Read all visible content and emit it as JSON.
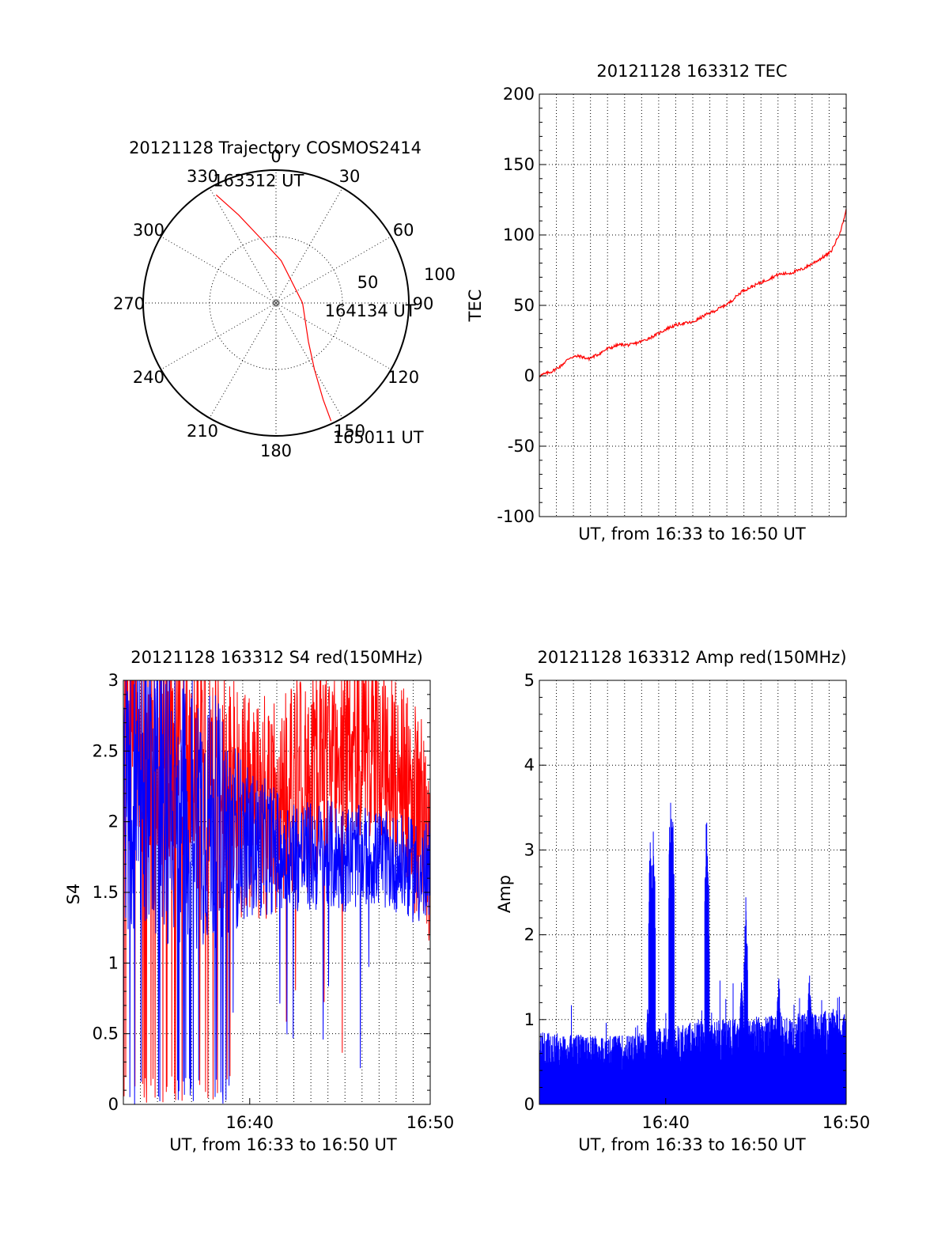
{
  "colors": {
    "red": "#ff0000",
    "blue": "#0000ff",
    "axis": "#000000",
    "background": "#ffffff"
  },
  "chart_data": [
    {
      "id": "trajectory",
      "type": "polar",
      "title": "20121128 Trajectory COSMOS2414",
      "angle_labels": [
        "0",
        "30",
        "60",
        "90",
        "120",
        "150",
        "180",
        "210",
        "240",
        "270",
        "300",
        "330"
      ],
      "angle_values": [
        0,
        30,
        60,
        90,
        120,
        150,
        180,
        210,
        240,
        270,
        300,
        330
      ],
      "radial_labels": [
        "50",
        "100"
      ],
      "radial_values": [
        50,
        100
      ],
      "rmax": 100,
      "grid": true,
      "series": [
        {
          "color": "#ff0000",
          "points": [
            {
              "az": 331,
              "r": 93
            },
            {
              "az": 337,
              "r": 72
            },
            {
              "az": 346,
              "r": 51
            },
            {
              "az": 7,
              "r": 32
            },
            {
              "az": 90,
              "r": 20
            },
            {
              "az": 140,
              "r": 38
            },
            {
              "az": 150,
              "r": 58
            },
            {
              "az": 154,
              "r": 81
            },
            {
              "az": 155,
              "r": 98
            }
          ]
        }
      ],
      "annotations": [
        {
          "text": "163312 UT",
          "az": 331,
          "r": 93
        },
        {
          "text": "164134 UT",
          "az": 90,
          "r": 20
        },
        {
          "text": "165011 UT",
          "az": 155,
          "r": 98
        }
      ]
    },
    {
      "id": "tec",
      "type": "line",
      "title": "20121128 163312 TEC",
      "xlabel": "UT, from 16:33 to 16:50 UT",
      "ylabel": "TEC",
      "ylim": [
        -100,
        200
      ],
      "yticks": [
        -100,
        -50,
        0,
        50,
        100,
        150,
        200
      ],
      "ytick_labels": [
        "-100",
        "-50",
        "0",
        "50",
        "100",
        "150",
        "200"
      ],
      "xlim": [
        0,
        1
      ],
      "x_gridlines": 18,
      "grid": true,
      "series": [
        {
          "color": "#ff0000",
          "x": [
            0,
            0.04,
            0.07,
            0.1,
            0.13,
            0.16,
            0.19,
            0.22,
            0.26,
            0.3,
            0.34,
            0.38,
            0.42,
            0.46,
            0.5,
            0.54,
            0.58,
            0.62,
            0.66,
            0.7,
            0.74,
            0.78,
            0.82,
            0.86,
            0.9,
            0.93,
            0.95,
            0.97,
            0.985,
            1
          ],
          "y": [
            0,
            3,
            7,
            13,
            14,
            12,
            15,
            19,
            22,
            22,
            25,
            29,
            34,
            37,
            38,
            43,
            47,
            52,
            60,
            64,
            68,
            72,
            73,
            76,
            81,
            85,
            88,
            97,
            105,
            118
          ]
        }
      ]
    },
    {
      "id": "s4",
      "type": "line",
      "title": "20121128 163312 S4 red(150MHz)",
      "xlabel": "UT, from 16:33 to 16:50 UT",
      "ylabel": "S4",
      "ylim": [
        0,
        3
      ],
      "yticks": [
        0,
        0.5,
        1,
        1.5,
        2,
        2.5,
        3
      ],
      "ytick_labels": [
        "0",
        "0.5",
        "1",
        "1.5",
        "2",
        "2.5",
        "3"
      ],
      "xlim": [
        0,
        1
      ],
      "xticks": [
        0.4118,
        1
      ],
      "xtick_labels": [
        "16:40",
        "16:50"
      ],
      "x_gridlines": 18,
      "grid": true,
      "series": [
        {
          "color": "#ff0000",
          "x": [
            0,
            0.1,
            0.2,
            0.3,
            0.4,
            0.5,
            0.6,
            0.7,
            0.8,
            0.9,
            1
          ],
          "center": [
            2.6,
            2.6,
            2.5,
            2.3,
            2.1,
            2.1,
            2.3,
            2.5,
            2.6,
            2.3,
            1.9
          ],
          "spread": [
            0.9,
            0.9,
            0.9,
            0.9,
            0.8,
            0.8,
            0.8,
            0.7,
            0.7,
            0.7,
            0.8
          ]
        },
        {
          "color": "#0000ff",
          "x": [
            0,
            0.1,
            0.2,
            0.3,
            0.4,
            0.5,
            0.6,
            0.7,
            0.8,
            0.9,
            1
          ],
          "center": [
            2.3,
            2.2,
            2.1,
            2.0,
            1.85,
            1.8,
            1.75,
            1.75,
            1.75,
            1.7,
            1.6
          ],
          "spread": [
            1.1,
            1.1,
            1.0,
            0.9,
            0.55,
            0.45,
            0.4,
            0.4,
            0.35,
            0.35,
            0.4
          ]
        }
      ]
    },
    {
      "id": "amp",
      "type": "bar",
      "title": "20121128 163312 Amp red(150MHz)",
      "xlabel": "UT, from 16:33 to 16:50 UT",
      "ylabel": "Amp",
      "ylim": [
        0,
        5
      ],
      "yticks": [
        0,
        1,
        2,
        3,
        4,
        5
      ],
      "ytick_labels": [
        "0",
        "1",
        "2",
        "3",
        "4",
        "5"
      ],
      "xlim": [
        0,
        1
      ],
      "xticks": [
        0.4118,
        1
      ],
      "xtick_labels": [
        "16:40",
        "16:50"
      ],
      "x_gridlines": 18,
      "grid": true,
      "series": [
        {
          "color": "#0000ff",
          "baseline": [
            0.75,
            0.72,
            0.7,
            0.72,
            0.78,
            0.85,
            0.88,
            0.9,
            0.92,
            0.95,
            1.0
          ],
          "baseline_x": [
            0,
            0.1,
            0.2,
            0.3,
            0.4,
            0.5,
            0.6,
            0.7,
            0.8,
            0.9,
            1
          ],
          "peaks": [
            {
              "x": 0.362,
              "y": 3.6
            },
            {
              "x": 0.372,
              "y": 3.45
            },
            {
              "x": 0.428,
              "y": 4.05
            },
            {
              "x": 0.434,
              "y": 3.8
            },
            {
              "x": 0.545,
              "y": 3.7
            },
            {
              "x": 0.548,
              "y": 3.3
            },
            {
              "x": 0.673,
              "y": 2.6
            },
            {
              "x": 0.66,
              "y": 1.55
            },
            {
              "x": 0.88,
              "y": 1.6
            },
            {
              "x": 0.78,
              "y": 1.6
            }
          ]
        }
      ]
    }
  ]
}
